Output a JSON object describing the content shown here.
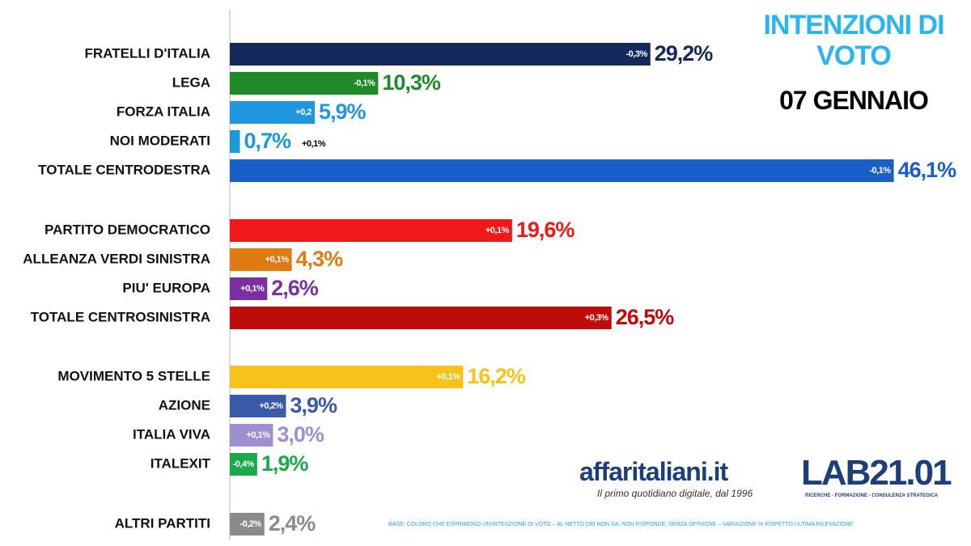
{
  "chart_data": {
    "type": "bar",
    "title": "INTENZIONI DI VOTO",
    "subtitle": "07 GENNAIO",
    "categories": [
      "FRATELLI D'ITALIA",
      "LEGA",
      "FORZA ITALIA",
      "NOI MODERATI",
      "TOTALE CENTRODESTRA",
      "PARTITO DEMOCRATICO",
      "ALLEANZA VERDI SINISTRA",
      "PIU' EUROPA",
      "TOTALE CENTROSINISTRA",
      "MOVIMENTO 5 STELLE",
      "AZIONE",
      "ITALIA VIVA",
      "ITALEXIT",
      "ALTRI PARTITI"
    ],
    "values": [
      29.2,
      10.3,
      5.9,
      0.7,
      46.1,
      19.6,
      4.3,
      2.6,
      26.5,
      16.2,
      3.9,
      3.0,
      1.9,
      2.4
    ],
    "value_labels": [
      "29,2%",
      "10,3%",
      "5,9%",
      "0,7%",
      "46,1%",
      "19,6%",
      "4,3%",
      "2,6%",
      "26,5%",
      "16,2%",
      "3,9%",
      "3,0%",
      "1,9%",
      "2,4%"
    ],
    "change_labels": [
      "-0,3%",
      "-0,1%",
      "+0,2",
      "+0,1%",
      "-0,1%",
      "+0,1%",
      "+0,1%",
      "+0,1%",
      "+0,3%",
      "+0,1%",
      "+0,2%",
      "+0,1%",
      "-0,4%",
      "-0,2%"
    ],
    "colors": [
      "#14285c",
      "#1e8a2a",
      "#2196e0",
      "#1a9ad6",
      "#1a5fc8",
      "#f01818",
      "#e07a12",
      "#7b2fa0",
      "#c00b0b",
      "#f7c21a",
      "#3a5aa8",
      "#9e90d0",
      "#1aa84a",
      "#8a8a8a"
    ],
    "brand": "affaritaliani.it",
    "tagline": "Il primo quotidiano digitale, dal 1996",
    "lab": "LAB21.01",
    "lab_tagline": "RICERCHE - FORMAZIONE - CONSULENZA STRATEGICA",
    "note": "BASE: COLORO CHE ESPRIMONO UN'INTENZIONE DI VOTO – AL NETTO DEI NON SA, NON RISPONDE, SENZA OPINIONE – VARIAZIONE % RISPETTO ULTIMA RILEVAZIONE"
  }
}
